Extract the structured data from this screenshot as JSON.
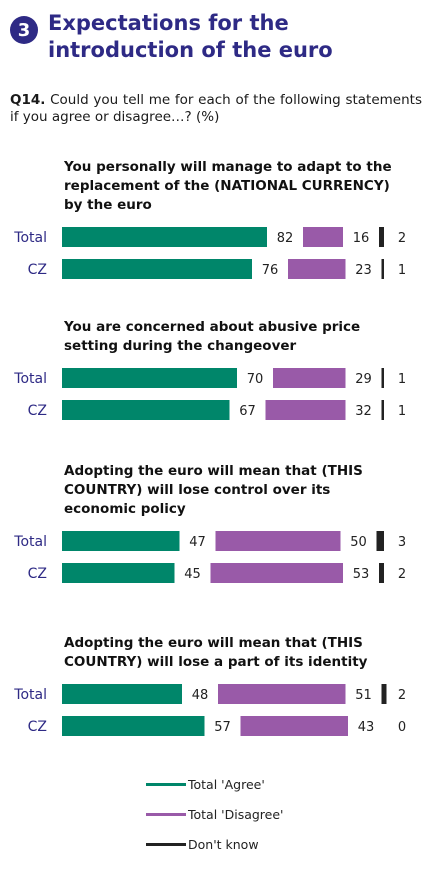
{
  "header": {
    "badge": "3",
    "title_line1": "Expectations for the",
    "title_line2": "introduction of the euro"
  },
  "question": {
    "id": "Q14.",
    "text": "Could you tell me for each of the following statements if you agree or disagree…? (%)"
  },
  "colors": {
    "agree": "#00866a",
    "disagree": "#995aa8",
    "dont_know": "#222222",
    "accent": "#2e2a85"
  },
  "chart_data": {
    "type": "bar",
    "stacked": true,
    "series": [
      {
        "name": "Total 'Agree'",
        "color": "#00866a"
      },
      {
        "name": "Total 'Disagree'",
        "color": "#995aa8"
      },
      {
        "name": "Don't know",
        "color": "#222222"
      }
    ],
    "groups": [
      {
        "title": [
          "You personally will manage to adapt to the",
          "replacement of the (NATIONAL CURRENCY)",
          "by the euro"
        ],
        "rows": [
          {
            "label": "Total",
            "agree": 82,
            "disagree": 16,
            "dont_know": 2
          },
          {
            "label": "CZ",
            "agree": 76,
            "disagree": 23,
            "dont_know": 1
          }
        ]
      },
      {
        "title": [
          "You are concerned about abusive price",
          "setting during the changeover"
        ],
        "rows": [
          {
            "label": "Total",
            "agree": 70,
            "disagree": 29,
            "dont_know": 1
          },
          {
            "label": "CZ",
            "agree": 67,
            "disagree": 32,
            "dont_know": 1
          }
        ]
      },
      {
        "title": [
          "Adopting the euro will mean that (THIS",
          "COUNTRY) will lose control over  its",
          "economic policy"
        ],
        "rows": [
          {
            "label": "Total",
            "agree": 47,
            "disagree": 50,
            "dont_know": 3
          },
          {
            "label": "CZ",
            "agree": 45,
            "disagree": 53,
            "dont_know": 2
          }
        ]
      },
      {
        "title": [
          "Adopting the euro will mean that (THIS",
          "COUNTRY) will lose a part of its identity"
        ],
        "rows": [
          {
            "label": "Total",
            "agree": 48,
            "disagree": 51,
            "dont_know": 2
          },
          {
            "label": "CZ",
            "agree": 57,
            "disagree": 43,
            "dont_know": 0
          }
        ]
      }
    ],
    "legend": [
      "Total 'Agree'",
      "Total 'Disagree'",
      "Don't know"
    ],
    "legend_position": "bottom"
  }
}
